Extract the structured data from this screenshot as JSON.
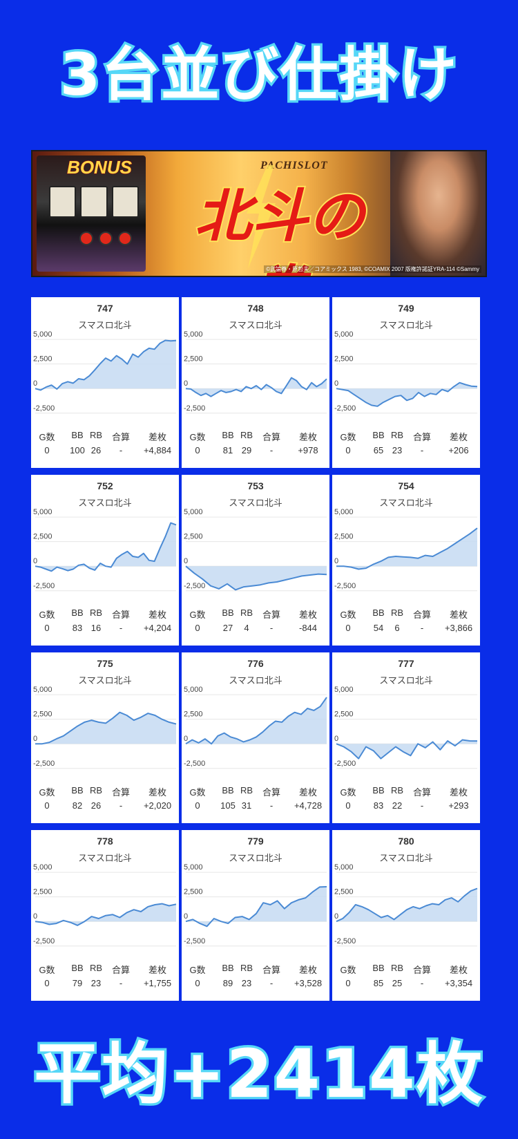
{
  "header": {
    "title": "3台並び仕掛け"
  },
  "banner": {
    "bonus_text": "BONUS",
    "pachislot_text": "PACHISLOT",
    "logo_text": "北斗の拳",
    "copyright": "©武論尊・原哲夫／コアミックス 1983, ©COAMIX 2007 版権許諾証YRA-114 ©Sammy"
  },
  "stats_headers": [
    "G数",
    "BB",
    "RB",
    "合算",
    "差枚"
  ],
  "chart_data": [
    {
      "type": "area",
      "title": "747",
      "subtitle": "スマスロ北斗",
      "yticks": [
        "5,000",
        "2,500",
        "0",
        "-2,500"
      ],
      "ylim": [
        -3500,
        5500
      ],
      "values": [
        0,
        -150,
        150,
        350,
        -50,
        500,
        700,
        550,
        1000,
        900,
        1300,
        1900,
        2550,
        3100,
        2800,
        3350,
        3000,
        2500,
        3500,
        3200,
        3750,
        4100,
        4000,
        4600,
        4900,
        4850,
        4884
      ],
      "stats": {
        "g": "0",
        "bb": "100",
        "rb": "26",
        "total": "-",
        "diff": "+4,884"
      }
    },
    {
      "type": "area",
      "title": "748",
      "subtitle": "スマスロ北斗",
      "yticks": [
        "5,000",
        "2,500",
        "0",
        "-2,500"
      ],
      "ylim": [
        -3500,
        5500
      ],
      "values": [
        0,
        -50,
        -400,
        -700,
        -500,
        -800,
        -500,
        -200,
        -400,
        -300,
        -100,
        -300,
        200,
        0,
        300,
        -100,
        400,
        100,
        -300,
        -500,
        300,
        1100,
        800,
        200,
        -100,
        600,
        200,
        500,
        978
      ],
      "stats": {
        "g": "0",
        "bb": "81",
        "rb": "29",
        "total": "-",
        "diff": "+978"
      }
    },
    {
      "type": "area",
      "title": "749",
      "subtitle": "スマスロ北斗",
      "yticks": [
        "5,000",
        "2,500",
        "0",
        "-2,500"
      ],
      "ylim": [
        -3500,
        5500
      ],
      "values": [
        0,
        -100,
        -200,
        -600,
        -1000,
        -1400,
        -1700,
        -1800,
        -1400,
        -1100,
        -800,
        -700,
        -1200,
        -1000,
        -400,
        -800,
        -500,
        -600,
        -100,
        -300,
        200,
        600,
        400,
        250,
        206
      ],
      "stats": {
        "g": "0",
        "bb": "65",
        "rb": "23",
        "total": "-",
        "diff": "+206"
      }
    },
    {
      "type": "area",
      "title": "752",
      "subtitle": "スマスロ北斗",
      "yticks": [
        "5,000",
        "2,500",
        "0",
        "-2,500"
      ],
      "ylim": [
        -3500,
        5500
      ],
      "values": [
        0,
        -100,
        -300,
        -500,
        -100,
        -250,
        -450,
        -300,
        100,
        200,
        -200,
        -400,
        300,
        0,
        -100,
        800,
        1200,
        1500,
        1000,
        900,
        1300,
        600,
        500,
        1800,
        3000,
        4400,
        4204
      ],
      "stats": {
        "g": "0",
        "bb": "83",
        "rb": "16",
        "total": "-",
        "diff": "+4,204"
      }
    },
    {
      "type": "area",
      "title": "753",
      "subtitle": "スマスロ北斗",
      "yticks": [
        "5,000",
        "2,500",
        "0",
        "-2,500"
      ],
      "ylim": [
        -3500,
        5500
      ],
      "values": [
        0,
        -700,
        -1300,
        -2000,
        -2300,
        -1800,
        -2400,
        -2100,
        -2000,
        -1900,
        -1700,
        -1600,
        -1400,
        -1200,
        -1000,
        -900,
        -800,
        -844
      ],
      "stats": {
        "g": "0",
        "bb": "27",
        "rb": "4",
        "total": "-",
        "diff": "-844"
      }
    },
    {
      "type": "area",
      "title": "754",
      "subtitle": "スマスロ北斗",
      "yticks": [
        "5,000",
        "2,500",
        "0",
        "-2,500"
      ],
      "ylim": [
        -3500,
        5500
      ],
      "values": [
        0,
        0,
        -100,
        -300,
        -200,
        200,
        500,
        900,
        1000,
        950,
        900,
        800,
        1100,
        1000,
        1400,
        1800,
        2300,
        2800,
        3300,
        3866
      ],
      "stats": {
        "g": "0",
        "bb": "54",
        "rb": "6",
        "total": "-",
        "diff": "+3,866"
      }
    },
    {
      "type": "area",
      "title": "775",
      "subtitle": "スマスロ北斗",
      "yticks": [
        "5,000",
        "2,500",
        "0",
        "-2,500"
      ],
      "ylim": [
        -3500,
        5500
      ],
      "values": [
        0,
        0,
        150,
        500,
        800,
        1300,
        1800,
        2200,
        2400,
        2200,
        2100,
        2600,
        3200,
        2900,
        2400,
        2700,
        3100,
        2900,
        2500,
        2200,
        2020
      ],
      "stats": {
        "g": "0",
        "bb": "82",
        "rb": "26",
        "total": "-",
        "diff": "+2,020"
      }
    },
    {
      "type": "area",
      "title": "776",
      "subtitle": "スマスロ北斗",
      "yticks": [
        "5,000",
        "2,500",
        "0",
        "-2,500"
      ],
      "ylim": [
        -3500,
        5500
      ],
      "values": [
        0,
        400,
        100,
        500,
        0,
        800,
        1100,
        700,
        500,
        200,
        400,
        700,
        1200,
        1800,
        2300,
        2200,
        2800,
        3200,
        3000,
        3600,
        3400,
        3800,
        4728
      ],
      "stats": {
        "g": "0",
        "bb": "105",
        "rb": "31",
        "total": "-",
        "diff": "+4,728"
      }
    },
    {
      "type": "area",
      "title": "777",
      "subtitle": "スマスロ北斗",
      "yticks": [
        "5,000",
        "2,500",
        "0",
        "-2,500"
      ],
      "ylim": [
        -3500,
        5500
      ],
      "values": [
        0,
        -300,
        -800,
        -1500,
        -300,
        -700,
        -1500,
        -900,
        -300,
        -800,
        -1200,
        0,
        -400,
        200,
        -600,
        300,
        -200,
        400,
        300,
        293
      ],
      "stats": {
        "g": "0",
        "bb": "83",
        "rb": "22",
        "total": "-",
        "diff": "+293"
      }
    },
    {
      "type": "area",
      "title": "778",
      "subtitle": "スマスロ北斗",
      "yticks": [
        "5,000",
        "2,500",
        "0",
        "-2,500"
      ],
      "ylim": [
        -3500,
        5500
      ],
      "values": [
        0,
        -100,
        -300,
        -200,
        100,
        -100,
        -400,
        0,
        500,
        300,
        600,
        700,
        400,
        900,
        1200,
        1000,
        1500,
        1700,
        1800,
        1600,
        1755
      ],
      "stats": {
        "g": "0",
        "bb": "79",
        "rb": "23",
        "total": "-",
        "diff": "+1,755"
      }
    },
    {
      "type": "area",
      "title": "779",
      "subtitle": "スマスロ北斗",
      "yticks": [
        "5,000",
        "2,500",
        "0",
        "-2,500"
      ],
      "ylim": [
        -3500,
        5500
      ],
      "values": [
        0,
        200,
        -200,
        -500,
        300,
        0,
        -200,
        400,
        500,
        200,
        800,
        1900,
        1700,
        2100,
        1300,
        1900,
        2200,
        2400,
        3000,
        3500,
        3528
      ],
      "stats": {
        "g": "0",
        "bb": "89",
        "rb": "23",
        "total": "-",
        "diff": "+3,528"
      }
    },
    {
      "type": "area",
      "title": "780",
      "subtitle": "スマスロ北斗",
      "yticks": [
        "5,000",
        "2,500",
        "0",
        "-2,500"
      ],
      "ylim": [
        -3500,
        5500
      ],
      "values": [
        0,
        300,
        900,
        1700,
        1500,
        1200,
        800,
        400,
        600,
        200,
        700,
        1200,
        1500,
        1300,
        1600,
        1800,
        1700,
        2200,
        2400,
        2000,
        2600,
        3100,
        3354
      ],
      "stats": {
        "g": "0",
        "bb": "85",
        "rb": "25",
        "total": "-",
        "diff": "+3,354"
      }
    }
  ],
  "footer": {
    "summary": "平均+2414枚"
  },
  "colors": {
    "background": "#0a2de8",
    "title_stroke": "#56d7f7",
    "line": "#4a8ad4",
    "fill": "#c6daf2"
  }
}
